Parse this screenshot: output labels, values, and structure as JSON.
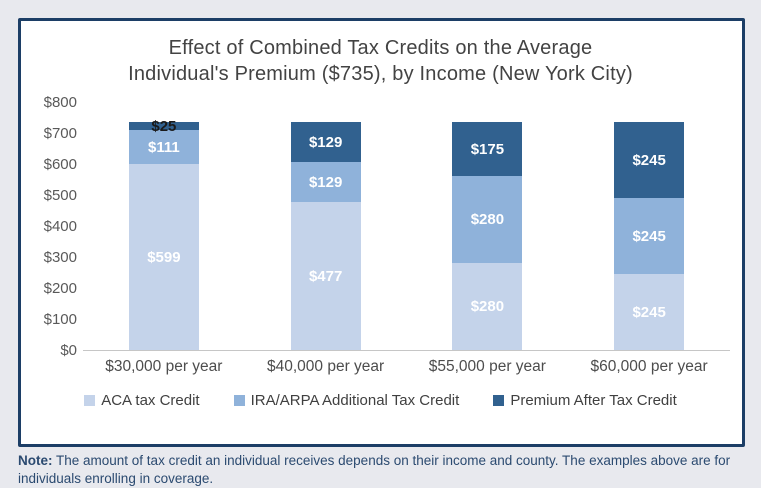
{
  "chart_data": {
    "type": "bar",
    "stacked": true,
    "title_line1": "Effect of Combined Tax Credits on the Average",
    "title_line2": "Individual's Premium ($735), by Income (New York City)",
    "categories": [
      "$30,000 per year",
      "$40,000 per year",
      "$55,000 per year",
      "$60,000 per year"
    ],
    "series": [
      {
        "name": "ACA tax Credit",
        "color": "#c4d3ea",
        "values": [
          599,
          477,
          280,
          245
        ]
      },
      {
        "name": "IRA/ARPA Additional Tax Credit",
        "color": "#8fb2da",
        "values": [
          111,
          129,
          280,
          245
        ]
      },
      {
        "name": "Premium After Tax Credit",
        "color": "#31618f",
        "values": [
          25,
          129,
          175,
          245
        ]
      }
    ],
    "data_label_prefix": "$",
    "ylim": [
      0,
      800
    ],
    "y_ticks": [
      "$0",
      "$100",
      "$200",
      "$300",
      "$400",
      "$500",
      "$600",
      "$700",
      "$800"
    ],
    "grid": false,
    "legend_position": "bottom"
  },
  "note": {
    "label": "Note:",
    "text": " The amount of tax credit an individual receives depends on their income and county. The examples above are for individuals enrolling in coverage."
  },
  "colors": {
    "page_background": "#e8e9ee",
    "card_border_navy": "#1c3e66",
    "note_text": "#2b4a70",
    "axis_line": "#c6c6c6"
  }
}
